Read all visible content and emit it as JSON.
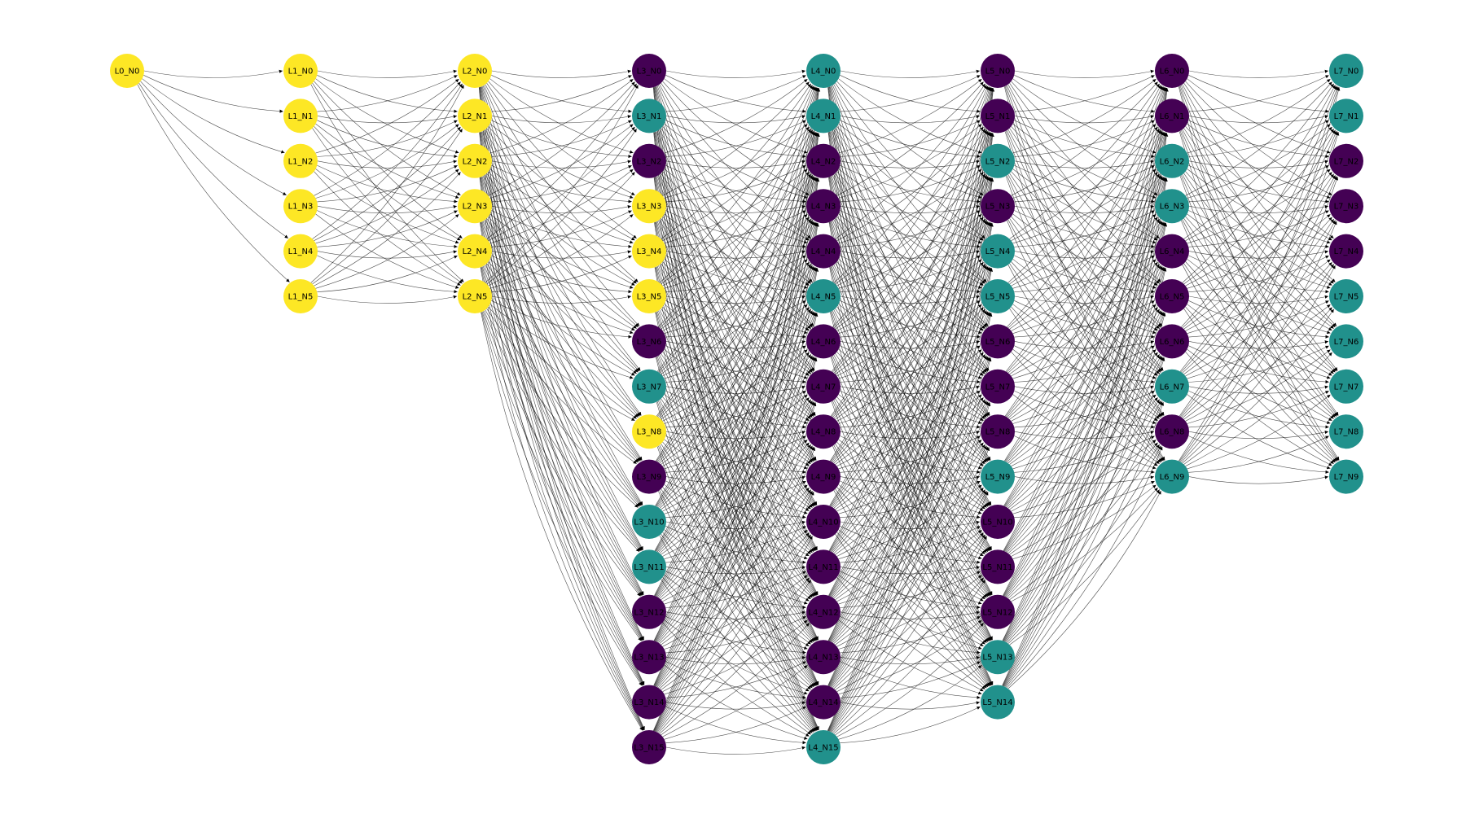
{
  "colors": {
    "yellow": "#fde725",
    "teal": "#21918c",
    "purple": "#440154",
    "edge": "#000000"
  },
  "layers": [
    {
      "name": "L0",
      "nodes": [
        {
          "label": "L0_N0",
          "color": "yellow"
        }
      ]
    },
    {
      "name": "L1",
      "nodes": [
        {
          "label": "L1_N0",
          "color": "yellow"
        },
        {
          "label": "L1_N1",
          "color": "yellow"
        },
        {
          "label": "L1_N2",
          "color": "yellow"
        },
        {
          "label": "L1_N3",
          "color": "yellow"
        },
        {
          "label": "L1_N4",
          "color": "yellow"
        },
        {
          "label": "L1_N5",
          "color": "yellow"
        }
      ]
    },
    {
      "name": "L2",
      "nodes": [
        {
          "label": "L2_N0",
          "color": "yellow"
        },
        {
          "label": "L2_N1",
          "color": "yellow"
        },
        {
          "label": "L2_N2",
          "color": "yellow"
        },
        {
          "label": "L2_N3",
          "color": "yellow"
        },
        {
          "label": "L2_N4",
          "color": "yellow"
        },
        {
          "label": "L2_N5",
          "color": "yellow"
        }
      ]
    },
    {
      "name": "L3",
      "nodes": [
        {
          "label": "L3_N0",
          "color": "purple"
        },
        {
          "label": "L3_N1",
          "color": "teal"
        },
        {
          "label": "L3_N2",
          "color": "purple"
        },
        {
          "label": "L3_N3",
          "color": "yellow"
        },
        {
          "label": "L3_N4",
          "color": "yellow"
        },
        {
          "label": "L3_N5",
          "color": "yellow"
        },
        {
          "label": "L3_N6",
          "color": "purple"
        },
        {
          "label": "L3_N7",
          "color": "teal"
        },
        {
          "label": "L3_N8",
          "color": "yellow"
        },
        {
          "label": "L3_N9",
          "color": "purple"
        },
        {
          "label": "L3_N10",
          "color": "teal"
        },
        {
          "label": "L3_N11",
          "color": "teal"
        },
        {
          "label": "L3_N12",
          "color": "purple"
        },
        {
          "label": "L3_N13",
          "color": "purple"
        },
        {
          "label": "L3_N14",
          "color": "purple"
        },
        {
          "label": "L3_N15",
          "color": "purple"
        }
      ]
    },
    {
      "name": "L4",
      "nodes": [
        {
          "label": "L4_N0",
          "color": "teal"
        },
        {
          "label": "L4_N1",
          "color": "teal"
        },
        {
          "label": "L4_N2",
          "color": "purple"
        },
        {
          "label": "L4_N3",
          "color": "purple"
        },
        {
          "label": "L4_N4",
          "color": "purple"
        },
        {
          "label": "L4_N5",
          "color": "teal"
        },
        {
          "label": "L4_N6",
          "color": "purple"
        },
        {
          "label": "L4_N7",
          "color": "purple"
        },
        {
          "label": "L4_N8",
          "color": "purple"
        },
        {
          "label": "L4_N9",
          "color": "purple"
        },
        {
          "label": "L4_N10",
          "color": "purple"
        },
        {
          "label": "L4_N11",
          "color": "purple"
        },
        {
          "label": "L4_N12",
          "color": "purple"
        },
        {
          "label": "L4_N13",
          "color": "purple"
        },
        {
          "label": "L4_N14",
          "color": "purple"
        },
        {
          "label": "L4_N15",
          "color": "teal"
        }
      ]
    },
    {
      "name": "L5",
      "nodes": [
        {
          "label": "L5_N0",
          "color": "purple"
        },
        {
          "label": "L5_N1",
          "color": "purple"
        },
        {
          "label": "L5_N2",
          "color": "teal"
        },
        {
          "label": "L5_N3",
          "color": "purple"
        },
        {
          "label": "L5_N4",
          "color": "teal"
        },
        {
          "label": "L5_N5",
          "color": "teal"
        },
        {
          "label": "L5_N6",
          "color": "purple"
        },
        {
          "label": "L5_N7",
          "color": "purple"
        },
        {
          "label": "L5_N8",
          "color": "purple"
        },
        {
          "label": "L5_N9",
          "color": "teal"
        },
        {
          "label": "L5_N10",
          "color": "purple"
        },
        {
          "label": "L5_N11",
          "color": "purple"
        },
        {
          "label": "L5_N12",
          "color": "purple"
        },
        {
          "label": "L5_N13",
          "color": "teal"
        },
        {
          "label": "L5_N14",
          "color": "teal"
        }
      ]
    },
    {
      "name": "L6",
      "nodes": [
        {
          "label": "L6_N0",
          "color": "purple"
        },
        {
          "label": "L6_N1",
          "color": "purple"
        },
        {
          "label": "L6_N2",
          "color": "teal"
        },
        {
          "label": "L6_N3",
          "color": "teal"
        },
        {
          "label": "L6_N4",
          "color": "purple"
        },
        {
          "label": "L6_N5",
          "color": "purple"
        },
        {
          "label": "L6_N6",
          "color": "purple"
        },
        {
          "label": "L6_N7",
          "color": "teal"
        },
        {
          "label": "L6_N8",
          "color": "purple"
        },
        {
          "label": "L6_N9",
          "color": "teal"
        }
      ]
    },
    {
      "name": "L7",
      "nodes": [
        {
          "label": "L7_N0",
          "color": "teal"
        },
        {
          "label": "L7_N1",
          "color": "teal"
        },
        {
          "label": "L7_N2",
          "color": "purple"
        },
        {
          "label": "L7_N3",
          "color": "purple"
        },
        {
          "label": "L7_N4",
          "color": "purple"
        },
        {
          "label": "L7_N5",
          "color": "teal"
        },
        {
          "label": "L7_N6",
          "color": "teal"
        },
        {
          "label": "L7_N7",
          "color": "teal"
        },
        {
          "label": "L7_N8",
          "color": "teal"
        },
        {
          "label": "L7_N9",
          "color": "teal"
        }
      ]
    }
  ],
  "edges": "fully-connected between adjacent layers"
}
